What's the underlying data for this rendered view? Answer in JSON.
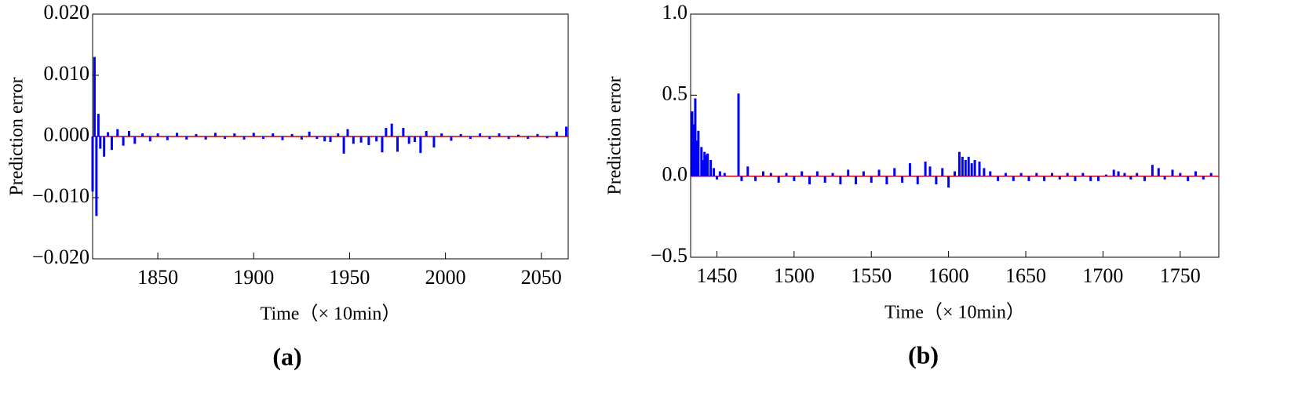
{
  "chart_data": [
    {
      "type": "bar",
      "label": "(a)",
      "ylabel": "Prediction error",
      "xlabel": "Time（× 10min）",
      "color": "#0000ff",
      "zero_line_color": "#cc0000",
      "xlim": [
        1816,
        2064
      ],
      "xticks": [
        1850,
        1900,
        1950,
        2000,
        2050
      ],
      "ylim": [
        -0.02,
        0.02
      ],
      "yticks": [
        {
          "value": -0.02,
          "label": "−0.020"
        },
        {
          "value": -0.01,
          "label": "−0.010"
        },
        {
          "value": 0,
          "label": "0.000"
        },
        {
          "value": 0.01,
          "label": "0.010"
        },
        {
          "value": 0.02,
          "label": "0.020"
        }
      ],
      "x": [
        1816,
        1817,
        1818,
        1819,
        1820,
        1822,
        1824,
        1826,
        1829,
        1832,
        1835,
        1838,
        1842,
        1846,
        1850,
        1855,
        1860,
        1865,
        1870,
        1875,
        1880,
        1885,
        1890,
        1895,
        1900,
        1905,
        1910,
        1915,
        1920,
        1925,
        1929,
        1933,
        1937,
        1940,
        1944,
        1947,
        1949,
        1952,
        1956,
        1960,
        1964,
        1967,
        1969,
        1972,
        1975,
        1978,
        1981,
        1984,
        1987,
        1990,
        1994,
        1998,
        2003,
        2008,
        2013,
        2018,
        2023,
        2028,
        2033,
        2038,
        2043,
        2048,
        2053,
        2058,
        2063
      ],
      "values": [
        -0.009,
        0.013,
        -0.013,
        0.0037,
        -0.002,
        -0.0033,
        0.0007,
        -0.0022,
        0.0012,
        -0.0015,
        0.0009,
        -0.0012,
        0.0005,
        -0.0008,
        0.0005,
        -0.0006,
        0.0006,
        -0.0005,
        0.0004,
        -0.0005,
        0.0006,
        -0.0004,
        0.0005,
        -0.0005,
        0.0006,
        -0.0004,
        0.0005,
        -0.0006,
        0.0004,
        -0.0005,
        0.0008,
        -0.0004,
        -0.0008,
        -0.0009,
        0.0005,
        -0.0028,
        0.0012,
        -0.0012,
        -0.001,
        -0.0014,
        -0.0008,
        -0.0026,
        0.0014,
        0.0021,
        -0.0025,
        0.0014,
        -0.0012,
        -0.0009,
        -0.0027,
        0.0009,
        -0.0018,
        0.0005,
        -0.0007,
        0.0004,
        -0.0004,
        0.0005,
        -0.0004,
        0.0005,
        -0.0004,
        0.0003,
        -0.0004,
        0.0004,
        -0.0003,
        0.0008,
        0.0016
      ]
    },
    {
      "type": "bar",
      "label": "(b)",
      "ylabel": "Prediction error",
      "xlabel": "Time（×  10min）",
      "color": "#0000ff",
      "zero_line_color": "#cc0000",
      "xlim": [
        1433,
        1775
      ],
      "xticks": [
        1450,
        1500,
        1550,
        1600,
        1650,
        1700,
        1750
      ],
      "ylim": [
        -0.5,
        1.0
      ],
      "yticks": [
        {
          "value": -0.5,
          "label": "−0.5"
        },
        {
          "value": 0,
          "label": "0.0"
        },
        0.5,
        {
          "value": 1.0,
          "label": "1.0"
        }
      ],
      "x": [
        1434,
        1435,
        1436,
        1437,
        1438,
        1440,
        1441,
        1442,
        1443,
        1444,
        1446,
        1448,
        1450,
        1452,
        1455,
        1464,
        1466,
        1470,
        1475,
        1480,
        1485,
        1490,
        1495,
        1500,
        1505,
        1510,
        1515,
        1520,
        1525,
        1530,
        1535,
        1540,
        1545,
        1550,
        1555,
        1560,
        1565,
        1570,
        1575,
        1580,
        1585,
        1588,
        1592,
        1596,
        1600,
        1604,
        1607,
        1609,
        1611,
        1613,
        1615,
        1617,
        1620,
        1623,
        1627,
        1632,
        1637,
        1642,
        1647,
        1652,
        1657,
        1662,
        1667,
        1672,
        1677,
        1682,
        1687,
        1692,
        1697,
        1702,
        1707,
        1710,
        1714,
        1718,
        1722,
        1727,
        1732,
        1736,
        1740,
        1745,
        1750,
        1755,
        1760,
        1765,
        1770
      ],
      "values": [
        0.4,
        0.32,
        0.48,
        0.22,
        0.28,
        0.18,
        0.1,
        0.15,
        0.13,
        0.14,
        0.1,
        0.05,
        -0.02,
        0.03,
        0.02,
        0.51,
        -0.03,
        0.06,
        -0.03,
        0.03,
        0.02,
        -0.04,
        0.02,
        -0.03,
        0.03,
        -0.05,
        0.03,
        -0.04,
        0.02,
        -0.05,
        0.04,
        -0.05,
        0.03,
        -0.04,
        0.04,
        -0.05,
        0.05,
        -0.04,
        0.08,
        -0.05,
        0.09,
        0.06,
        -0.05,
        0.05,
        -0.07,
        0.03,
        0.15,
        0.12,
        0.1,
        0.12,
        0.08,
        0.1,
        0.09,
        0.05,
        0.03,
        -0.03,
        0.02,
        -0.03,
        0.02,
        -0.03,
        0.02,
        -0.03,
        0.02,
        -0.02,
        0.02,
        -0.03,
        0.02,
        -0.03,
        -0.03,
        0.01,
        0.04,
        0.03,
        0.02,
        -0.02,
        0.02,
        -0.03,
        0.07,
        0.05,
        -0.02,
        0.04,
        0.02,
        -0.03,
        0.03,
        -0.02,
        0.02
      ]
    }
  ]
}
